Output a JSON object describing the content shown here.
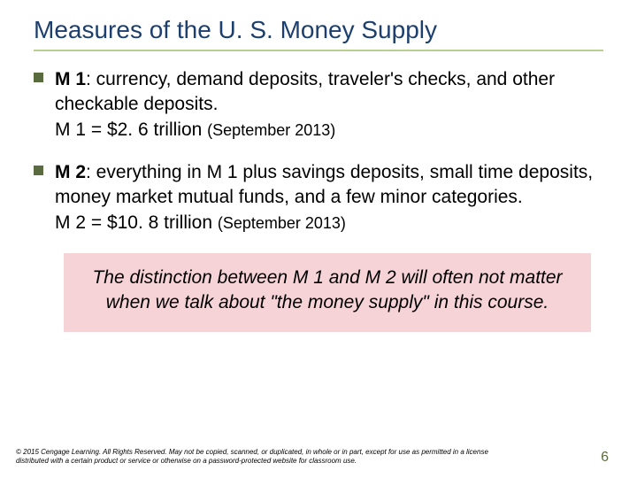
{
  "title": "Measures of the U. S. Money Supply",
  "colors": {
    "title_color": "#1c3f6e",
    "underline_color": "#b9cf8e",
    "bullet_color": "#5a6b3f",
    "callout_bg": "#f6d3d7",
    "page_num_color": "#5a6b3f",
    "text_color": "#000000",
    "background": "#ffffff"
  },
  "bullets": [
    {
      "label": "M 1",
      "desc": ":  currency, demand deposits, traveler's checks, and other checkable deposits.",
      "eq": "M 1 = $2. 6 trillion ",
      "date": "(September 2013)"
    },
    {
      "label": "M 2",
      "desc": ":  everything in M 1 plus savings deposits, small time deposits, money market mutual funds, and a few minor categories.",
      "eq": "M 2 = $10. 8 trillion ",
      "date": "(September 2013)"
    }
  ],
  "callout": "The distinction between M 1 and M 2 will often not matter when we talk about \"the money supply\" in this course.",
  "copyright": "© 2015 Cengage Learning. All Rights Reserved. May not be copied, scanned, or duplicated, in whole or in part, except for use as permitted in a license distributed with a certain product or service or otherwise on a password-protected website for classroom use.",
  "page_number": "6",
  "typography": {
    "title_fontsize": 28,
    "body_fontsize": 21,
    "subdate_fontsize": 18,
    "copyright_fontsize": 8,
    "pagenum_fontsize": 16
  }
}
